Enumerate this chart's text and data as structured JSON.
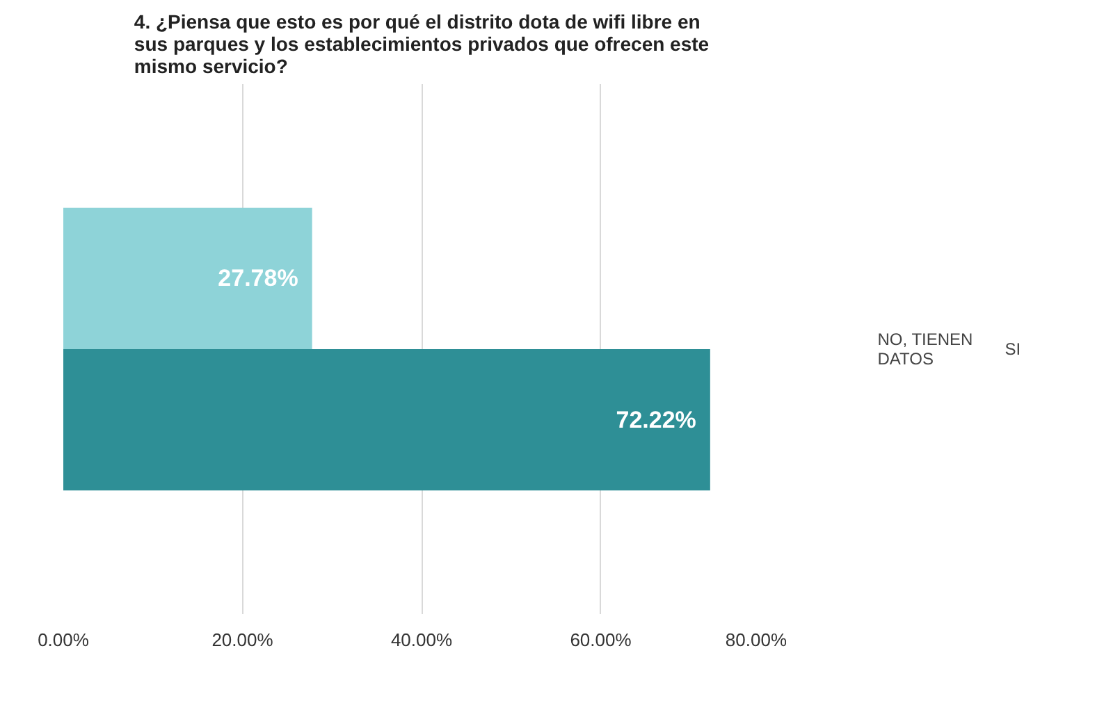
{
  "chart_data": {
    "type": "bar",
    "orientation": "horizontal",
    "title": "4. ¿Piensa que esto es por qué el distrito dota de wifi libre en sus parques y los establecimientos privados que ofrecen este mismo servicio?",
    "categories": [
      null
    ],
    "series": [
      {
        "name": "NO, TIENEN DATOS",
        "color": "#8ed3d8",
        "values": [
          27.78
        ],
        "value_labels": [
          "27.78%"
        ]
      },
      {
        "name": "SI",
        "color": "#2e8f96",
        "values": [
          72.22
        ],
        "value_labels": [
          "72.22%"
        ]
      }
    ],
    "xlim": [
      0,
      80
    ],
    "xticks": [
      {
        "value": 0,
        "label": "0.00%"
      },
      {
        "value": 20,
        "label": "20.00%"
      },
      {
        "value": 40,
        "label": "40.00%"
      },
      {
        "value": 60,
        "label": "60.00%"
      },
      {
        "value": 80,
        "label": "80.00%"
      }
    ],
    "grid": "x",
    "legend": "right"
  }
}
